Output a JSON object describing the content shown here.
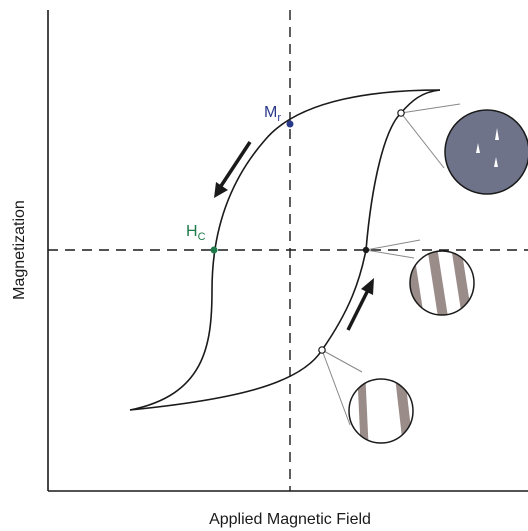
{
  "axes": {
    "x_label": "Applied Magnetic Field",
    "y_label": "Magnetization"
  },
  "points": {
    "remanence": {
      "main": "M",
      "sub": "r"
    },
    "coercivity": {
      "main": "H",
      "sub": "C"
    }
  },
  "colors": {
    "curve": "#1a1a1a",
    "axis": "#1a1a1a",
    "remanence_point": "#2a3a8a",
    "coercivity_point": "#1f7a4a",
    "saturated_domain_fill": "#6e7389",
    "stripe_fill": "#9a8c88"
  }
}
